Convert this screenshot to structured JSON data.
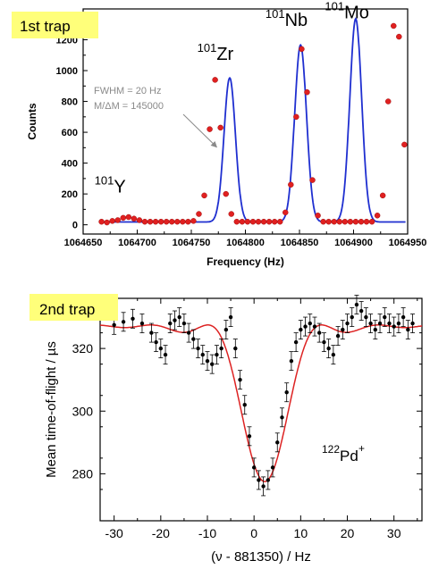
{
  "chart_data": [
    {
      "type": "line",
      "tag": "1st trap",
      "xlabel": "Frequency (Hz)",
      "ylabel": "Counts",
      "xlim": [
        1064650,
        1064950
      ],
      "ylim": [
        -60,
        1400
      ],
      "xticks": [
        "1064650",
        "1064700",
        "1064750",
        "1064800",
        "1064850",
        "1064900",
        "1064950"
      ],
      "yticks": [
        "0",
        "200",
        "400",
        "600",
        "800",
        "1000",
        "1200"
      ],
      "xtick_values": [
        1064650,
        1064700,
        1064750,
        1064800,
        1064850,
        1064900,
        1064950
      ],
      "ytick_values": [
        0,
        200,
        400,
        600,
        800,
        1000,
        1200
      ],
      "colors": {
        "fit": "#1f2fd0",
        "points": "#e02020",
        "tag_bg": "#ffff7a"
      },
      "peak_labels": [
        {
          "mass": "101",
          "element": "Y",
          "x": 1064690,
          "y": 210
        },
        {
          "mass": "101",
          "element": "Zr",
          "x": 1064785,
          "y": 1070
        },
        {
          "mass": "101",
          "element": "Nb",
          "x": 1064848,
          "y": 1290
        },
        {
          "mass": "101",
          "element": "Mo",
          "x": 1064903,
          "y": 1340
        }
      ],
      "annotation": {
        "line1": "FWHM = 20 Hz",
        "line2": "M/ΔM = 145000",
        "arrow_from": [
          1064745,
          660
        ],
        "arrow_to": [
          1064774,
          500
        ]
      },
      "fit": {
        "peaks": [
          {
            "center": 1064785.5,
            "height": 935,
            "sigma": 5.3
          },
          {
            "center": 1064851,
            "height": 1148,
            "sigma": 5.5
          },
          {
            "center": 1064902,
            "height": 1318,
            "sigma": 5.5
          }
        ]
      },
      "series": [
        {
          "values_x": [
            1064667,
            1064672,
            1064677,
            1064682,
            1064687,
            1064692,
            1064697,
            1064702,
            1064707,
            1064712,
            1064717,
            1064722,
            1064727,
            1064732,
            1064737,
            1064742,
            1064747,
            1064752,
            1064757,
            1064762,
            1064767,
            1064772,
            1064777,
            1064782,
            1064787,
            1064792,
            1064797,
            1064802,
            1064807,
            1064812,
            1064817,
            1064822,
            1064827,
            1064832,
            1064837,
            1064842,
            1064847,
            1064852,
            1064857,
            1064862,
            1064867,
            1064872,
            1064877,
            1064882,
            1064887,
            1064892,
            1064897,
            1064902,
            1064907,
            1064912,
            1064917,
            1064922,
            1064927,
            1064932,
            1064937,
            1064942,
            1064947
          ],
          "values_y": [
            20,
            15,
            25,
            30,
            45,
            50,
            40,
            30,
            20,
            20,
            20,
            20,
            20,
            20,
            20,
            20,
            20,
            25,
            70,
            190,
            620,
            940,
            630,
            200,
            70,
            20,
            20,
            20,
            20,
            20,
            20,
            20,
            20,
            20,
            80,
            260,
            700,
            1140,
            860,
            290,
            60,
            20,
            20,
            20,
            20,
            20,
            20,
            20,
            20,
            20,
            20,
            60,
            190,
            800,
            1290,
            1220,
            520
          ]
        }
      ]
    },
    {
      "type": "scatter",
      "tag": "2nd trap",
      "xlabel": "(ν - 881350) / Hz",
      "ylabel": "Mean time-of-flight / µs",
      "xlim": [
        -33,
        36
      ],
      "ylim": [
        265,
        336
      ],
      "xticks": [
        "-30",
        "-20",
        "-10",
        "0",
        "10",
        "20",
        "30"
      ],
      "yticks": [
        "280",
        "300",
        "320"
      ],
      "xtick_values": [
        -30,
        -20,
        -10,
        0,
        10,
        20,
        30
      ],
      "ytick_values": [
        280,
        300,
        320
      ],
      "colors": {
        "fit": "#dd2222",
        "points": "#000000",
        "tag_bg": "#ffff7a"
      },
      "ion_label": {
        "mass": "122",
        "element": "Pd",
        "charge": "+"
      },
      "series": [
        {
          "x": [
            -30,
            -28,
            -26,
            -24,
            -22,
            -21,
            -20,
            -19,
            -18,
            -17,
            -16,
            -15,
            -14,
            -13,
            -12,
            -11,
            -10,
            -9,
            -8,
            -7,
            -6,
            -5,
            -4,
            -3,
            -2,
            -1,
            0,
            1,
            2,
            3,
            4,
            5,
            6,
            7,
            8,
            9,
            10,
            11,
            12,
            13,
            14,
            15,
            16,
            17,
            18,
            19,
            20,
            21,
            22,
            23,
            24,
            25,
            26,
            27,
            28,
            29,
            30,
            31,
            32,
            33,
            34
          ],
          "y": [
            327.5,
            328.5,
            329.5,
            328,
            325,
            322,
            320,
            318,
            328,
            329,
            330,
            328,
            325,
            323,
            320,
            318,
            316,
            315,
            318,
            320,
            326,
            330,
            320,
            310,
            302,
            292,
            282,
            278,
            276,
            278,
            282,
            290,
            298,
            306,
            316,
            322,
            326,
            327,
            328,
            327,
            325,
            322,
            320,
            318,
            324,
            326,
            328,
            330,
            334,
            332,
            330,
            328,
            326,
            328,
            330,
            328,
            327,
            328,
            330,
            326,
            328
          ],
          "err": [
            3,
            3,
            3,
            3,
            3,
            3,
            3,
            3,
            3,
            3,
            3,
            3,
            3,
            3,
            3,
            3,
            3,
            3,
            3,
            3,
            3,
            3,
            3,
            3,
            3,
            3,
            3,
            3,
            3,
            3,
            3,
            3,
            3,
            3,
            3,
            3,
            3,
            3,
            3,
            3,
            3,
            3,
            3,
            3,
            3,
            3,
            3,
            3,
            3,
            3,
            3,
            3,
            3,
            3,
            3,
            3,
            3,
            3,
            3,
            3,
            3
          ]
        }
      ]
    }
  ]
}
